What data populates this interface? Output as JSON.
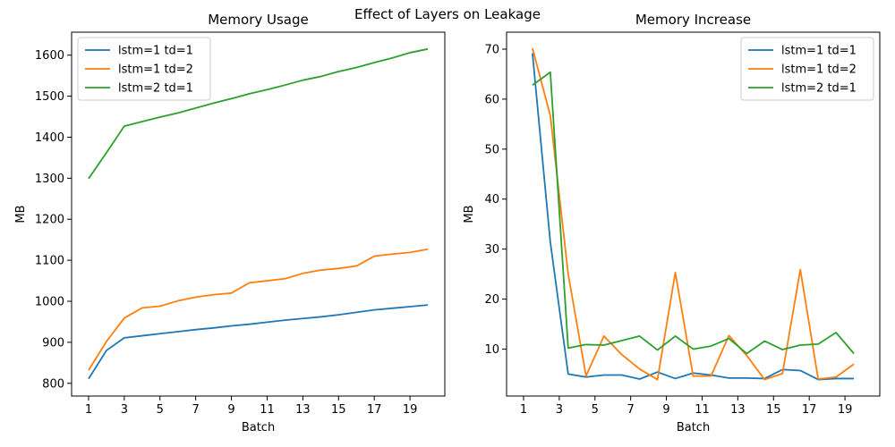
{
  "suptitle": "Effect of Layers on Leakage",
  "colors": {
    "series1": "#1f77b4",
    "series2": "#ff7f0e",
    "series3": "#2ca02c"
  },
  "chart_data": [
    {
      "type": "line",
      "title": "Memory Usage",
      "xlabel": "Batch",
      "ylabel": "MB",
      "xlim": [
        0.05,
        20.95
      ],
      "ylim": [
        769,
        1656
      ],
      "xticks": [
        1,
        3,
        5,
        7,
        9,
        11,
        13,
        15,
        17,
        19
      ],
      "yticks": [
        800,
        900,
        1000,
        1100,
        1200,
        1300,
        1400,
        1500,
        1600
      ],
      "legend_position": "top-left",
      "x": [
        1,
        2,
        3,
        4,
        5,
        6,
        7,
        8,
        9,
        10,
        11,
        12,
        13,
        14,
        15,
        16,
        17,
        18,
        19,
        20
      ],
      "series": [
        {
          "name": "lstm=1 td=1",
          "color": "#1f77b4",
          "values": [
            811,
            880,
            911,
            916,
            921,
            926,
            931,
            935,
            940,
            944,
            949,
            954,
            958,
            962,
            967,
            973,
            979,
            983,
            987,
            991
          ]
        },
        {
          "name": "lstm=1 td=2",
          "color": "#ff7f0e",
          "values": [
            832,
            902,
            959,
            984,
            988,
            1001,
            1010,
            1016,
            1020,
            1045,
            1050,
            1055,
            1068,
            1076,
            1080,
            1086,
            1110,
            1115,
            1119,
            1127
          ]
        },
        {
          "name": "lstm=2 td=1",
          "color": "#2ca02c",
          "values": [
            1299,
            1362,
            1427,
            1438,
            1449,
            1459,
            1471,
            1483,
            1494,
            1506,
            1516,
            1527,
            1539,
            1548,
            1560,
            1570,
            1582,
            1593,
            1606,
            1615
          ]
        }
      ]
    },
    {
      "type": "line",
      "title": "Memory Increase",
      "xlabel": "Batch",
      "ylabel": "MB",
      "xlim": [
        0.05,
        20.95
      ],
      "ylim": [
        0.6,
        73.4
      ],
      "xticks": [
        1,
        3,
        5,
        7,
        9,
        11,
        13,
        15,
        17,
        19
      ],
      "yticks": [
        10,
        20,
        30,
        40,
        50,
        60,
        70
      ],
      "legend_position": "top-right",
      "x": [
        1.5,
        2.5,
        3.5,
        4.5,
        5.5,
        6.5,
        7.5,
        8.5,
        9.5,
        10.5,
        11.5,
        12.5,
        13.5,
        14.5,
        15.5,
        16.5,
        17.5,
        18.5,
        19.5
      ],
      "series": [
        {
          "name": "lstm=1 td=1",
          "color": "#1f77b4",
          "values": [
            69.2,
            31.4,
            5.0,
            4.4,
            4.8,
            4.8,
            4.0,
            5.4,
            4.1,
            5.2,
            4.8,
            4.2,
            4.2,
            4.1,
            5.9,
            5.7,
            3.9,
            4.1,
            4.1
          ]
        },
        {
          "name": "lstm=1 td=2",
          "color": "#ff7f0e",
          "values": [
            70.2,
            56.7,
            25.0,
            4.6,
            12.6,
            8.9,
            6.0,
            3.9,
            25.3,
            4.6,
            4.6,
            12.7,
            8.7,
            3.9,
            5.1,
            25.9,
            4.0,
            4.4,
            7.0
          ]
        },
        {
          "name": "lstm=2 td=1",
          "color": "#2ca02c",
          "values": [
            62.8,
            65.4,
            10.2,
            10.9,
            10.8,
            11.7,
            12.6,
            9.8,
            12.6,
            10.0,
            10.6,
            12.1,
            9.1,
            11.6,
            9.9,
            10.8,
            11.0,
            13.3,
            9.1
          ]
        }
      ]
    }
  ]
}
